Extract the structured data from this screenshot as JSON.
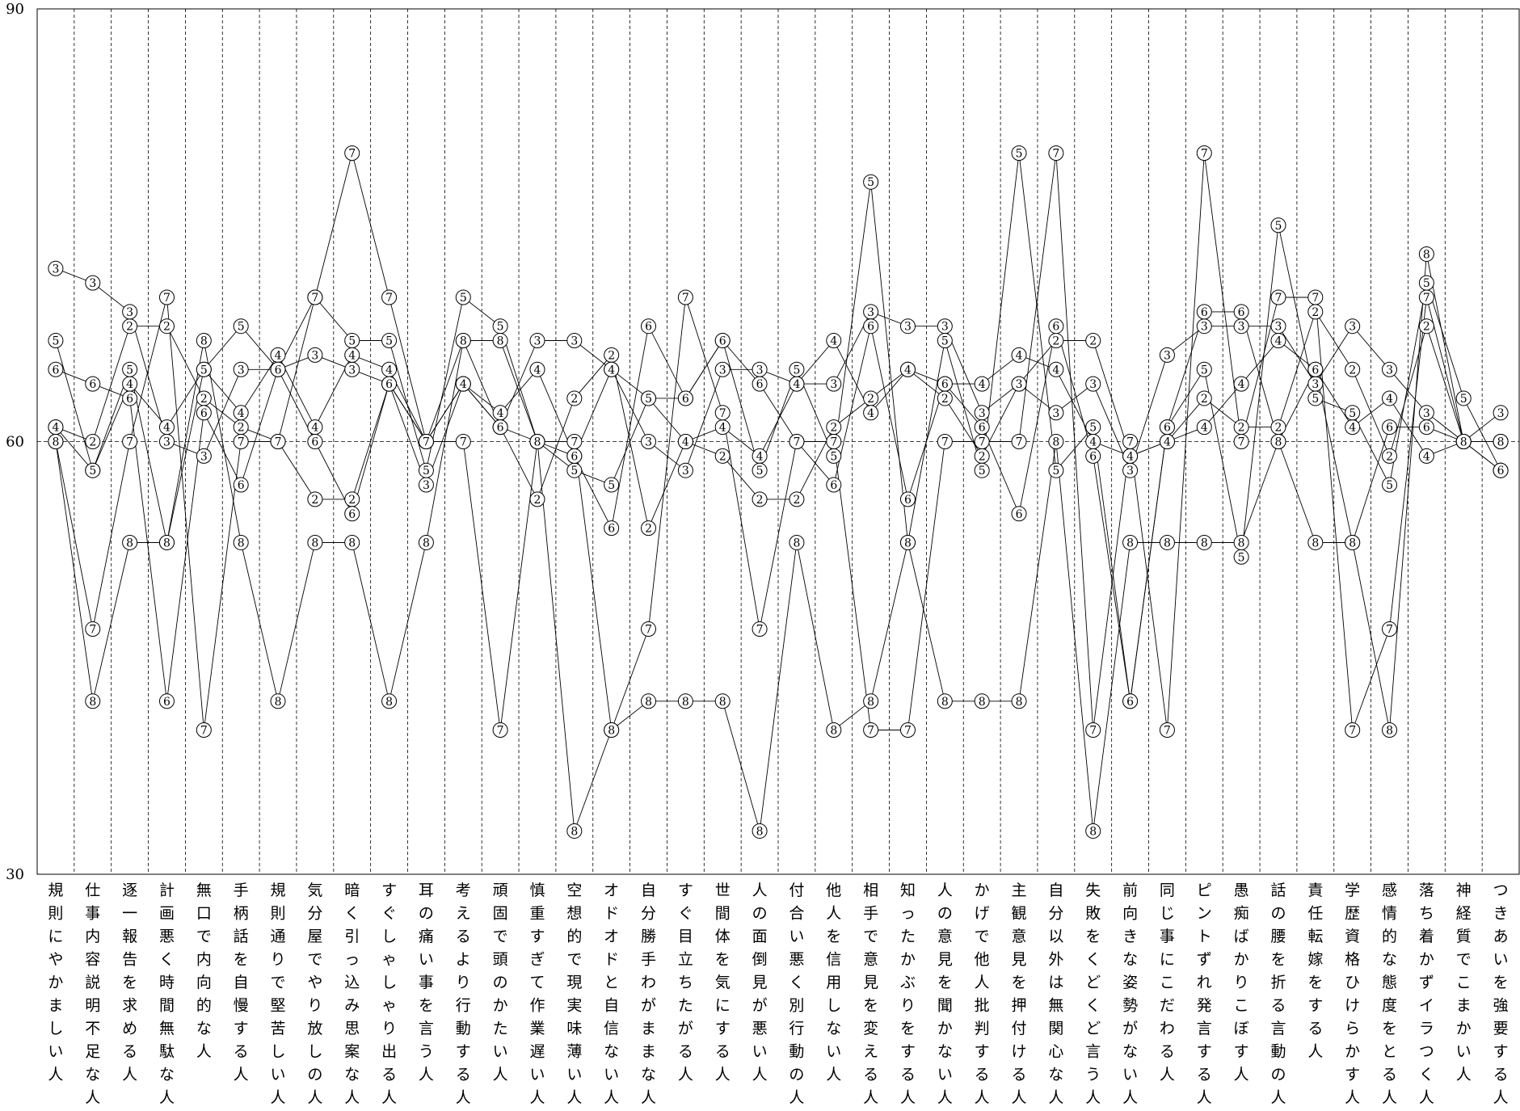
{
  "chart_data": {
    "type": "line",
    "title": "",
    "xlabel": "",
    "ylabel": "",
    "ylim": [
      30,
      90
    ],
    "yticks": [
      30,
      60,
      90
    ],
    "reference_line": 60,
    "grid": "vertical dashed separators",
    "categories": [
      "規則にやかましい人",
      "仕事内容説明不足な人",
      "逐一報告を求める人",
      "計画悪く時間無駄な人",
      "無口で内向的な人",
      "手柄話を自慢する人",
      "規則通りで堅苦しい人",
      "気分屋でやり放しの人",
      "暗く引っ込み思案な人",
      "すぐしゃしゃり出る人",
      "耳の痛い事を言う人",
      "考えるより行動する人",
      "頑固で頭のかたい人",
      "慎重すぎて作業遅い人",
      "空想的で現実味薄い人",
      "オドオドと自信ない人",
      "自分勝手わがままな人",
      "すぐ目立ちたがる人",
      "世間体を気にする人",
      "人の面倒見が悪い人",
      "付合い悪く別行動の人",
      "他人を信用しない人",
      "相手で意見を変える人",
      "知ったかぶりをする人",
      "人の意見を聞かない人",
      "かげで他人批判する人",
      "主観意見を押付ける人",
      "自分以外は無関心な人",
      "失敗をくどくど言う人",
      "前向きな姿勢がない人",
      "同じ事にこだわる人",
      "ピントずれ発言する人",
      "愚痴ばかりこぼす人",
      "話の腰を折る言動の人",
      "責任転嫁をする人",
      "学歴資格ひけらかす人",
      "感情的な態度をとる人",
      "落ち着かずイラつく人",
      "神経質でこまかい人",
      "つきあいを強要する人"
    ],
    "series": [
      {
        "marker": "2",
        "values": [
          61,
          60,
          68,
          68,
          63,
          61,
          60,
          56,
          56,
          64,
          60,
          64,
          61,
          56,
          63,
          66,
          54,
          60,
          59,
          56,
          56,
          61,
          63,
          65,
          63,
          59,
          64,
          67,
          67,
          59,
          60,
          63,
          61,
          61,
          69,
          65,
          59,
          68,
          60,
          60
        ]
      },
      {
        "marker": "3",
        "values": [
          72,
          71,
          69,
          60,
          59,
          65,
          65,
          66,
          65,
          64,
          57,
          64,
          61,
          67,
          67,
          65,
          60,
          58,
          65,
          65,
          64,
          64,
          69,
          68,
          68,
          62,
          64,
          62,
          64,
          58,
          66,
          68,
          68,
          68,
          64,
          68,
          65,
          62,
          60,
          62
        ]
      },
      {
        "marker": "4",
        "values": [
          61,
          58,
          64,
          61,
          65,
          62,
          66,
          61,
          66,
          65,
          60,
          64,
          62,
          65,
          59,
          65,
          63,
          60,
          61,
          59,
          64,
          67,
          62,
          65,
          64,
          64,
          66,
          65,
          60,
          59,
          60,
          61,
          64,
          67,
          65,
          61,
          63,
          59,
          60,
          58
        ]
      },
      {
        "marker": "5",
        "values": [
          67,
          58,
          65,
          53,
          65,
          68,
          65,
          70,
          67,
          67,
          58,
          70,
          68,
          60,
          58,
          57,
          63,
          63,
          67,
          58,
          65,
          59,
          78,
          53,
          67,
          58,
          80,
          58,
          61,
          42,
          61,
          65,
          52,
          75,
          63,
          62,
          57,
          71,
          63,
          58
        ]
      },
      {
        "marker": "6",
        "values": [
          65,
          64,
          63,
          42,
          62,
          57,
          65,
          60,
          55,
          64,
          60,
          67,
          61,
          60,
          59,
          54,
          68,
          63,
          67,
          64,
          60,
          57,
          68,
          56,
          64,
          61,
          55,
          68,
          59,
          42,
          61,
          69,
          69,
          60,
          65,
          53,
          61,
          61,
          60,
          58
        ]
      },
      {
        "marker": "7",
        "values": [
          60,
          47,
          60,
          70,
          40,
          60,
          60,
          70,
          80,
          70,
          60,
          60,
          40,
          60,
          60,
          40,
          47,
          70,
          62,
          47,
          60,
          60,
          40,
          40,
          60,
          60,
          60,
          80,
          40,
          60,
          40,
          80,
          60,
          70,
          70,
          40,
          47,
          70,
          60,
          60
        ]
      },
      {
        "marker": "8",
        "values": [
          60,
          42,
          53,
          53,
          67,
          53,
          42,
          53,
          53,
          42,
          53,
          67,
          67,
          60,
          33,
          40,
          42,
          42,
          42,
          33,
          53,
          40,
          42,
          53,
          42,
          42,
          42,
          60,
          33,
          53,
          53,
          53,
          53,
          60,
          53,
          53,
          40,
          73,
          60,
          60
        ]
      }
    ]
  }
}
